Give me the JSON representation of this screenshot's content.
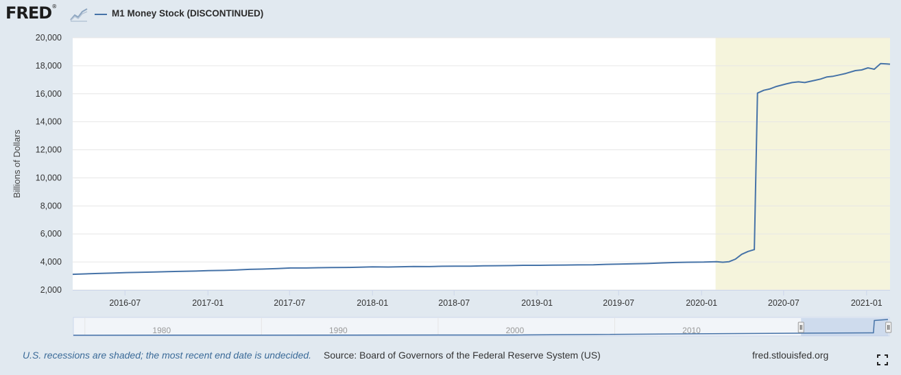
{
  "header": {
    "logo_text": "FRED",
    "logo_mark": "®",
    "logo_icon": "trend-graph-icon",
    "legend_label": "M1 Money Stock (DISCONTINUED)"
  },
  "colors": {
    "series": "#4572a7",
    "recession_shade": "#f5f4dc",
    "background": "#e1e9f0",
    "plot_bg": "#ffffff",
    "navigator_selection": "#b0c4e3"
  },
  "chart_data": {
    "type": "line",
    "title": "",
    "xlabel": "",
    "ylabel": "Billions of Dollars",
    "ylim": [
      2000,
      20000
    ],
    "y_ticks": [
      "2,000",
      "4,000",
      "6,000",
      "8,000",
      "10,000",
      "12,000",
      "14,000",
      "16,000",
      "18,000",
      "20,000"
    ],
    "x_range": [
      "2016-03-07",
      "2021-02-22"
    ],
    "x_ticks": [
      "2016-07",
      "2017-01",
      "2017-07",
      "2018-01",
      "2018-07",
      "2019-01",
      "2019-07",
      "2020-01",
      "2020-07",
      "2021-01"
    ],
    "grid": true,
    "recession_shading": [
      {
        "start": "2020-02-01",
        "end": "2021-02-22"
      }
    ],
    "series": [
      {
        "name": "M1 Money Stock (DISCONTINUED)",
        "points": [
          [
            "2016-03-07",
            3120
          ],
          [
            "2016-04-04",
            3150
          ],
          [
            "2016-05-02",
            3180
          ],
          [
            "2016-06-06",
            3210
          ],
          [
            "2016-07-04",
            3240
          ],
          [
            "2016-08-01",
            3260
          ],
          [
            "2016-09-05",
            3280
          ],
          [
            "2016-10-03",
            3310
          ],
          [
            "2016-11-07",
            3330
          ],
          [
            "2016-12-05",
            3350
          ],
          [
            "2017-01-02",
            3380
          ],
          [
            "2017-02-06",
            3400
          ],
          [
            "2017-03-06",
            3430
          ],
          [
            "2017-04-03",
            3470
          ],
          [
            "2017-05-01",
            3490
          ],
          [
            "2017-06-05",
            3530
          ],
          [
            "2017-07-03",
            3570
          ],
          [
            "2017-08-07",
            3570
          ],
          [
            "2017-09-04",
            3590
          ],
          [
            "2017-10-02",
            3600
          ],
          [
            "2017-11-06",
            3610
          ],
          [
            "2017-12-04",
            3630
          ],
          [
            "2018-01-01",
            3650
          ],
          [
            "2018-02-05",
            3640
          ],
          [
            "2018-03-05",
            3660
          ],
          [
            "2018-04-02",
            3680
          ],
          [
            "2018-05-07",
            3670
          ],
          [
            "2018-06-04",
            3690
          ],
          [
            "2018-07-02",
            3700
          ],
          [
            "2018-08-06",
            3700
          ],
          [
            "2018-09-03",
            3720
          ],
          [
            "2018-10-01",
            3730
          ],
          [
            "2018-11-05",
            3740
          ],
          [
            "2018-12-03",
            3760
          ],
          [
            "2019-01-07",
            3760
          ],
          [
            "2019-02-04",
            3770
          ],
          [
            "2019-03-04",
            3780
          ],
          [
            "2019-04-01",
            3790
          ],
          [
            "2019-05-06",
            3800
          ],
          [
            "2019-06-03",
            3830
          ],
          [
            "2019-07-01",
            3850
          ],
          [
            "2019-08-05",
            3870
          ],
          [
            "2019-09-02",
            3890
          ],
          [
            "2019-10-07",
            3930
          ],
          [
            "2019-11-04",
            3960
          ],
          [
            "2019-12-02",
            3980
          ],
          [
            "2020-01-06",
            3990
          ],
          [
            "2020-02-03",
            4020
          ],
          [
            "2020-02-17",
            3980
          ],
          [
            "2020-03-02",
            4020
          ],
          [
            "2020-03-16",
            4200
          ],
          [
            "2020-03-30",
            4550
          ],
          [
            "2020-04-13",
            4750
          ],
          [
            "2020-04-27",
            4880
          ],
          [
            "2020-05-04",
            16050
          ],
          [
            "2020-05-18",
            16250
          ],
          [
            "2020-06-01",
            16350
          ],
          [
            "2020-06-15",
            16520
          ],
          [
            "2020-07-06",
            16700
          ],
          [
            "2020-07-20",
            16800
          ],
          [
            "2020-08-03",
            16850
          ],
          [
            "2020-08-17",
            16800
          ],
          [
            "2020-09-07",
            16950
          ],
          [
            "2020-09-21",
            17050
          ],
          [
            "2020-10-05",
            17200
          ],
          [
            "2020-10-19",
            17250
          ],
          [
            "2020-11-02",
            17350
          ],
          [
            "2020-11-16",
            17450
          ],
          [
            "2020-12-07",
            17650
          ],
          [
            "2020-12-21",
            17700
          ],
          [
            "2021-01-04",
            17850
          ],
          [
            "2021-01-18",
            17750
          ],
          [
            "2021-02-01",
            18150
          ],
          [
            "2021-02-15",
            18130
          ],
          [
            "2021-02-22",
            18110
          ]
        ]
      }
    ],
    "navigator": {
      "tick_labels": [
        "1980",
        "1990",
        "2000",
        "2010"
      ],
      "tick_years": [
        1980,
        1990,
        2000,
        2010
      ],
      "year_range": [
        1975,
        2021.2
      ],
      "selection_years": [
        2016.2,
        2021.15
      ]
    }
  },
  "footer": {
    "note": "U.S. recessions are shaded; the most recent end date is undecided.",
    "source": "Source: Board of Governors of the Federal Reserve System (US)",
    "url": "fred.stlouisfed.org",
    "fullscreen_icon": "fullscreen-icon"
  }
}
